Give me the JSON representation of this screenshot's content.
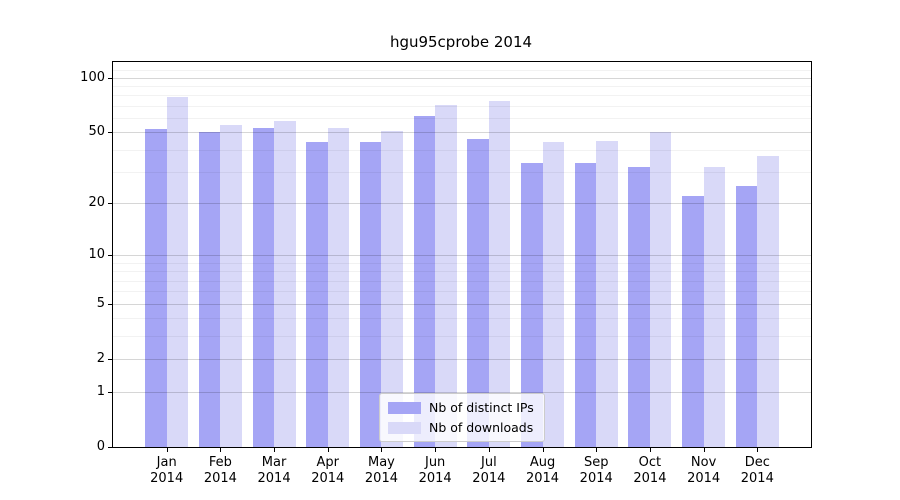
{
  "title": "hgu95cprobe 2014",
  "chart_data": {
    "type": "bar",
    "title": "hgu95cprobe 2014",
    "categories": [
      "Jan 2014",
      "Feb 2014",
      "Mar 2014",
      "Apr 2014",
      "May 2014",
      "Jun 2014",
      "Jul 2014",
      "Aug 2014",
      "Sep 2014",
      "Oct 2014",
      "Nov 2014",
      "Dec 2014"
    ],
    "series": [
      {
        "name": "Nb of distinct IPs",
        "color": "#a5a5f5",
        "values": [
          52,
          50,
          53,
          44,
          44,
          62,
          46,
          34,
          34,
          32,
          22,
          25
        ]
      },
      {
        "name": "Nb of downloads",
        "color": "#d9d9f8",
        "values": [
          78,
          55,
          58,
          53,
          51,
          71,
          75,
          44,
          45,
          50,
          32,
          37
        ]
      }
    ],
    "xlabel": "",
    "ylabel": "",
    "y_scale": "log1p",
    "y_ticks": [
      0,
      1,
      2,
      5,
      10,
      20,
      50,
      100
    ],
    "y_minor_ticks": [
      3,
      4,
      6,
      7,
      8,
      9,
      30,
      40,
      60,
      70,
      80,
      90,
      110
    ],
    "ylim": [
      0,
      122
    ],
    "grid": true,
    "legend_position": "inside-bottom-center"
  },
  "colors": {
    "background": "#ffffff",
    "axis": "#000000",
    "grid_major": "#d6d6d6",
    "grid_minor": "#f1f1f1",
    "series_ips": "#a5a5f5",
    "series_downloads": "#d9d9f8"
  }
}
